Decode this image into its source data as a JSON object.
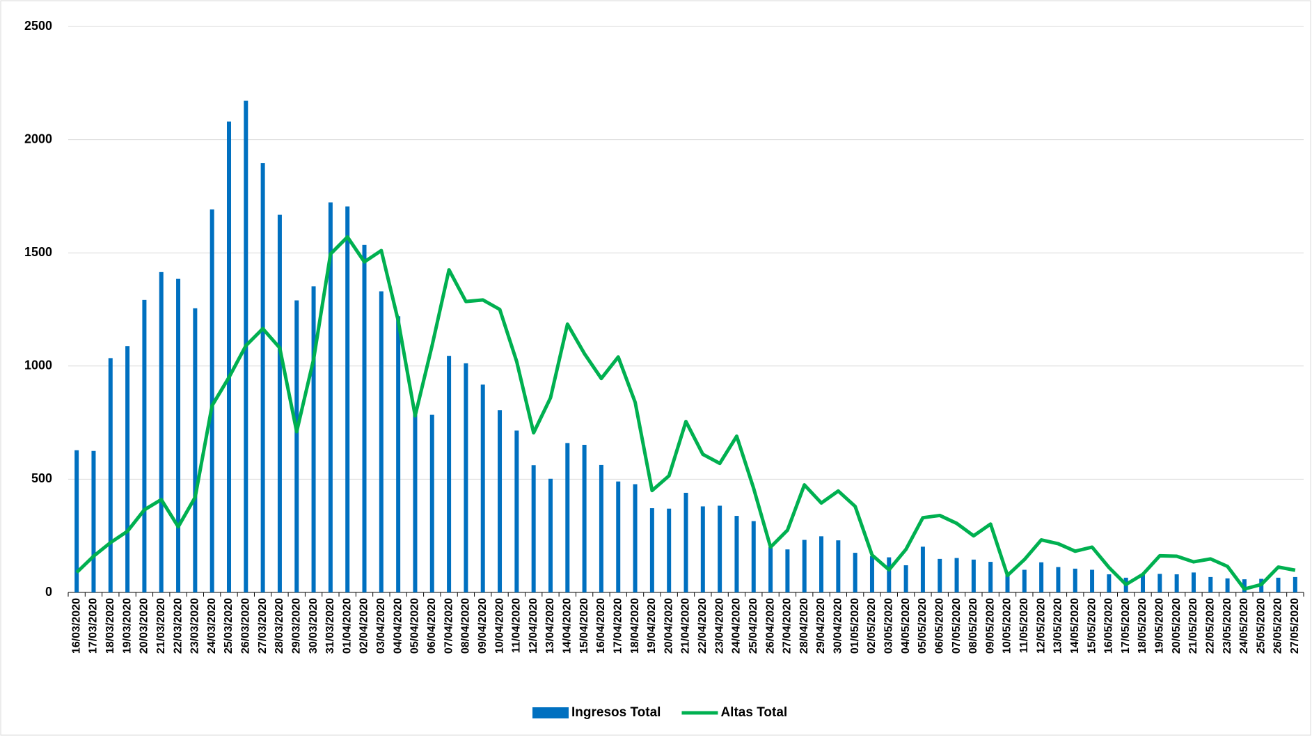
{
  "chart_data": {
    "type": "bar-line",
    "categories": [
      "16/03/2020",
      "17/03/2020",
      "18/03/2020",
      "19/03/2020",
      "20/03/2020",
      "21/03/2020",
      "22/03/2020",
      "23/03/2020",
      "24/03/2020",
      "25/03/2020",
      "26/03/2020",
      "27/03/2020",
      "28/03/2020",
      "29/03/2020",
      "30/03/2020",
      "31/03/2020",
      "01/04/2020",
      "02/04/2020",
      "03/04/2020",
      "04/04/2020",
      "05/04/2020",
      "06/04/2020",
      "07/04/2020",
      "08/04/2020",
      "09/04/2020",
      "10/04/2020",
      "11/04/2020",
      "12/04/2020",
      "13/04/2020",
      "14/04/2020",
      "15/04/2020",
      "16/04/2020",
      "17/04/2020",
      "18/04/2020",
      "19/04/2020",
      "20/04/2020",
      "21/04/2020",
      "22/04/2020",
      "23/04/2020",
      "24/04/2020",
      "25/04/2020",
      "26/04/2020",
      "27/04/2020",
      "28/04/2020",
      "29/04/2020",
      "30/04/2020",
      "01/05/2020",
      "02/05/2020",
      "03/05/2020",
      "04/05/2020",
      "05/05/2020",
      "06/05/2020",
      "07/05/2020",
      "08/05/2020",
      "09/05/2020",
      "10/05/2020",
      "11/05/2020",
      "12/05/2020",
      "13/05/2020",
      "14/05/2020",
      "15/05/2020",
      "16/05/2020",
      "17/05/2020",
      "18/05/2020",
      "19/05/2020",
      "20/05/2020",
      "21/05/2020",
      "22/05/2020",
      "23/05/2020",
      "24/05/2020",
      "25/05/2020",
      "26/05/2020",
      "27/05/2020"
    ],
    "series": [
      {
        "name": "Ingresos Total",
        "kind": "bar",
        "color": "#0070c0",
        "values": [
          628,
          625,
          1035,
          1088,
          1292,
          1415,
          1385,
          1255,
          1692,
          2080,
          2172,
          1897,
          1668,
          1290,
          1352,
          1723,
          1705,
          1535,
          1330,
          1220,
          790,
          785,
          1045,
          1012,
          918,
          805,
          715,
          562,
          502,
          660,
          652,
          563,
          490,
          478,
          372,
          370,
          440,
          380,
          383,
          338,
          315,
          200,
          190,
          232,
          248,
          230,
          175,
          160,
          155,
          120,
          202,
          148,
          152,
          145,
          135,
          80,
          100,
          133,
          112,
          105,
          100,
          80,
          65,
          78,
          82,
          80,
          88,
          68,
          62,
          58,
          60,
          65,
          68
        ]
      },
      {
        "name": "Altas Total",
        "kind": "line",
        "color": "#00b050",
        "values": [
          88,
          160,
          220,
          270,
          365,
          410,
          290,
          420,
          825,
          950,
          1090,
          1165,
          1080,
          710,
          1030,
          1495,
          1570,
          1460,
          1510,
          1200,
          780,
          1090,
          1425,
          1285,
          1292,
          1250,
          1020,
          705,
          860,
          1185,
          1055,
          945,
          1040,
          840,
          450,
          515,
          755,
          610,
          570,
          690,
          460,
          200,
          275,
          475,
          395,
          448,
          380,
          165,
          100,
          190,
          330,
          340,
          305,
          250,
          302,
          75,
          145,
          232,
          215,
          182,
          200,
          110,
          35,
          80,
          162,
          160,
          135,
          148,
          115,
          15,
          35,
          112,
          98
        ]
      }
    ],
    "ylim": [
      0,
      2500
    ],
    "yticks": [
      0,
      500,
      1000,
      1500,
      2000,
      2500
    ],
    "grid": true,
    "legend": "bottom"
  }
}
